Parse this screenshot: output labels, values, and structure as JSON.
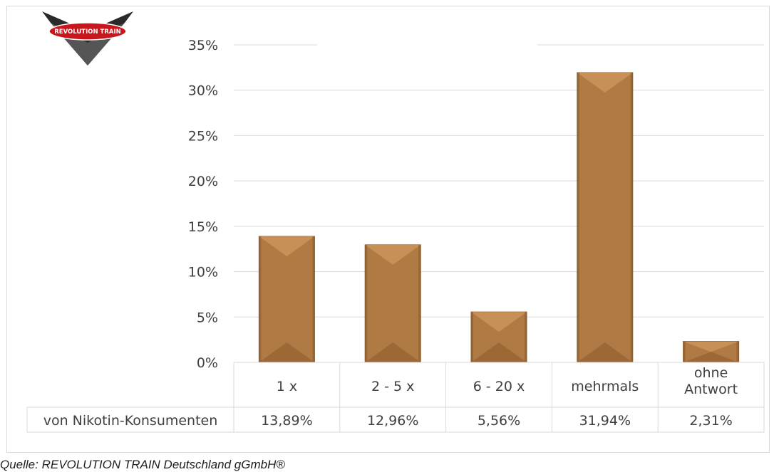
{
  "logo": {
    "text": "REVOLUTION TRAIN"
  },
  "source": "Quelle: REVOLUTION TRAIN Deutschland gGmbH®",
  "colors": {
    "bar": "#b07a44",
    "bar_light": "#c9925a",
    "bar_dark": "#8a5a2b",
    "grid": "#d9d9d9",
    "text": "#404040"
  },
  "chart_data": {
    "type": "bar",
    "categories": [
      "1 x",
      "2 - 5 x",
      "6 - 20 x",
      "mehrmals",
      "ohne Antwort"
    ],
    "series": [
      {
        "name": "von Nikotin-Konsumenten",
        "values": [
          13.89,
          12.96,
          5.56,
          31.94,
          2.31
        ]
      }
    ],
    "table_values": [
      "13,89%",
      "12,96%",
      "5,56%",
      "31,94%",
      "2,31%"
    ],
    "y_ticks": [
      "0%",
      "5%",
      "10%",
      "15%",
      "20%",
      "25%",
      "30%",
      "35%"
    ],
    "ylim": [
      0,
      35
    ],
    "grid": true,
    "data_table": true
  }
}
